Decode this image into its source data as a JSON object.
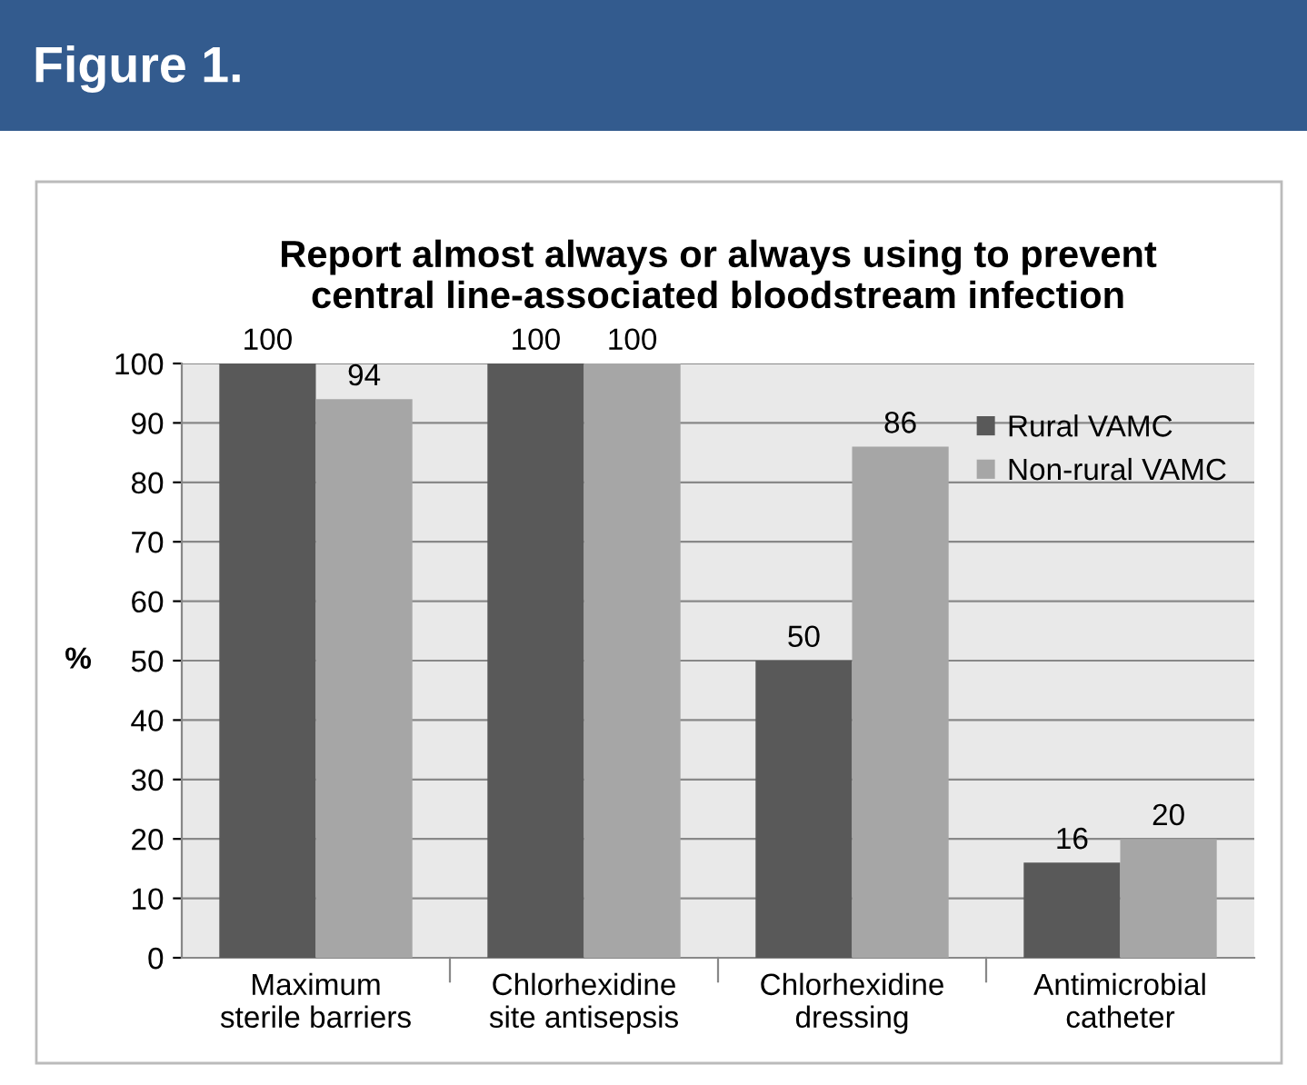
{
  "chart_data": {
    "type": "bar",
    "title": "Report almost always or always using to prevent\ncentral line-associated bloodstream infection",
    "ylabel": "%",
    "annotations": [
      "Figure 1."
    ],
    "categories": [
      "Maximum\nsterile barriers",
      "Chlorhexidine\nsite antisepsis",
      "Chlorhexidine\ndressing",
      "Antimicrobial\ncatheter"
    ],
    "series": [
      {
        "name": "Rural VAMC",
        "color": "#595959",
        "values": [
          100,
          100,
          50,
          16
        ]
      },
      {
        "name": "Non-rural VAMC",
        "color": "#a6a6a6",
        "values": [
          94,
          100,
          86,
          20
        ]
      }
    ],
    "ylim": [
      0,
      100
    ],
    "yticks": [
      0,
      10,
      20,
      30,
      40,
      50,
      60,
      70,
      80,
      90,
      100
    ],
    "grid": "y",
    "legend": "top right",
    "data_labels": true
  }
}
